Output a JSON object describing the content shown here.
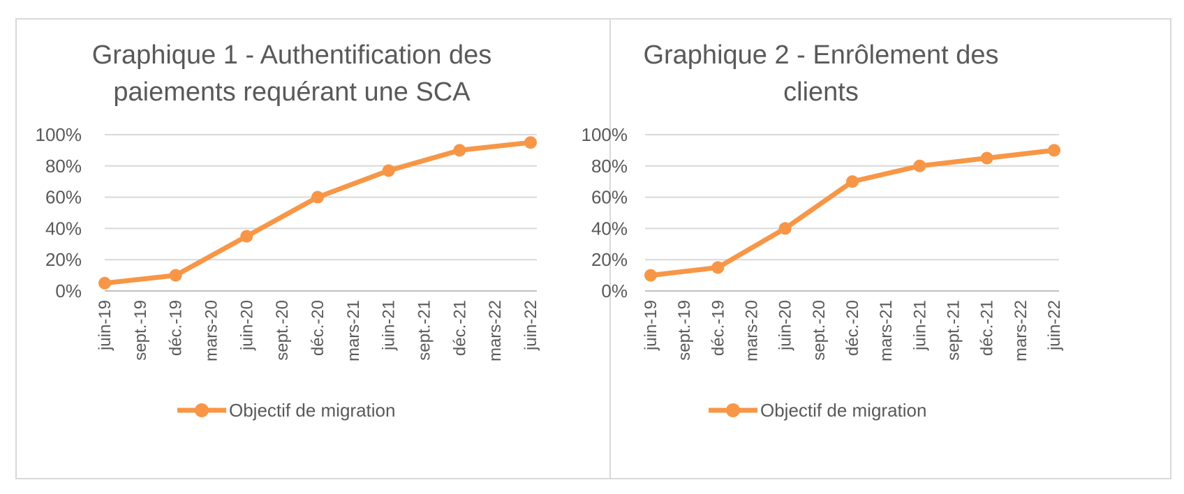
{
  "chart_data": [
    {
      "type": "line",
      "title": [
        "Graphique 1 - Authentification des",
        "paiements requérant une SCA"
      ],
      "categories": [
        "juin-19",
        "sept.-19",
        "déc.-19",
        "mars-20",
        "juin-20",
        "sept.-20",
        "déc.-20",
        "mars-21",
        "juin-21",
        "sept.-21",
        "déc.-21",
        "mars-22",
        "juin-22"
      ],
      "yticks": [
        "0%",
        "20%",
        "40%",
        "60%",
        "80%",
        "100%"
      ],
      "ylim": [
        0,
        100
      ],
      "grid": true,
      "legend_position": "bottom",
      "series": [
        {
          "name": "Objectif de migration",
          "color": "#f79646",
          "points": [
            {
              "x": "juin-19",
              "y": 5
            },
            {
              "x": "déc.-19",
              "y": 10
            },
            {
              "x": "juin-20",
              "y": 35
            },
            {
              "x": "déc.-20",
              "y": 60
            },
            {
              "x": "juin-21",
              "y": 77
            },
            {
              "x": "déc.-21",
              "y": 90
            },
            {
              "x": "juin-22",
              "y": 95
            }
          ]
        }
      ]
    },
    {
      "type": "line",
      "title": [
        "Graphique 2 - Enrôlement des",
        "clients"
      ],
      "categories": [
        "juin-19",
        "sept.-19",
        "déc.-19",
        "mars-20",
        "juin-20",
        "sept.-20",
        "déc.-20",
        "mars-21",
        "juin-21",
        "sept.-21",
        "déc.-21",
        "mars-22",
        "juin-22"
      ],
      "yticks": [
        "0%",
        "20%",
        "40%",
        "60%",
        "80%",
        "100%"
      ],
      "ylim": [
        0,
        100
      ],
      "grid": true,
      "legend_position": "bottom",
      "series": [
        {
          "name": "Objectif de migration",
          "color": "#f79646",
          "points": [
            {
              "x": "juin-19",
              "y": 10
            },
            {
              "x": "déc.-19",
              "y": 15
            },
            {
              "x": "juin-20",
              "y": 40
            },
            {
              "x": "déc.-20",
              "y": 70
            },
            {
              "x": "juin-21",
              "y": 80
            },
            {
              "x": "déc.-21",
              "y": 85
            },
            {
              "x": "juin-22",
              "y": 90
            }
          ]
        }
      ]
    }
  ]
}
